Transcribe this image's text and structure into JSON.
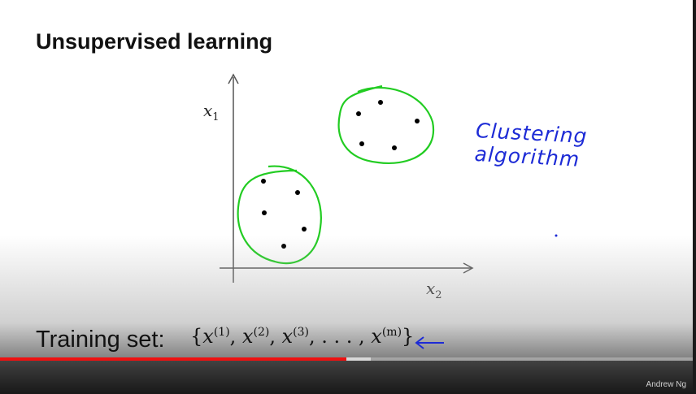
{
  "slide": {
    "title": "Unsupervised learning",
    "axes": {
      "y_label": "x",
      "y_sub": "1",
      "x_label": "x",
      "x_sub": "2"
    },
    "annotation": "Clustering algorithm",
    "training": {
      "label": "Training set:",
      "open": "{",
      "x1": "x",
      "s1": "(1)",
      "x2": "x",
      "s2": "(2)",
      "x3": "x",
      "s3": "(3)",
      "dots": ", . . . ,",
      "xm": "x",
      "sm": "(m)",
      "close": "}"
    },
    "watermark": "Andrew Ng",
    "colors": {
      "cluster": "#22cc22",
      "ink": "#1d2bd6",
      "played": "#ee1111"
    }
  },
  "player": {
    "played_fraction": 0.5,
    "buffered_fraction": 0.535
  }
}
